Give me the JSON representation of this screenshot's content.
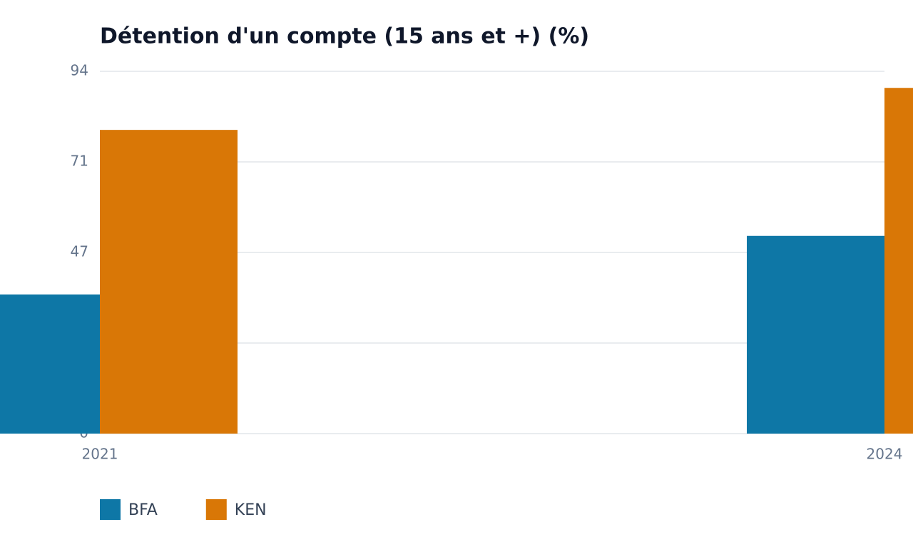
{
  "chart_data": {
    "type": "bar",
    "title": "Détention d'un compte (15 ans et +) (%)",
    "categories": [
      "2021",
      "2024"
    ],
    "series": [
      {
        "name": "BFA",
        "color": "#0e77a6",
        "values": [
          36.1,
          51.3
        ]
      },
      {
        "name": "KEN",
        "color": "#d97706",
        "values": [
          78.8,
          89.7
        ]
      }
    ],
    "ylim": [
      0,
      94
    ],
    "yticks": [
      0,
      {
        "value": 23.5,
        "label": null
      },
      47,
      {
        "value": 70.5,
        "label": "71"
      },
      94
    ],
    "grid": true
  }
}
